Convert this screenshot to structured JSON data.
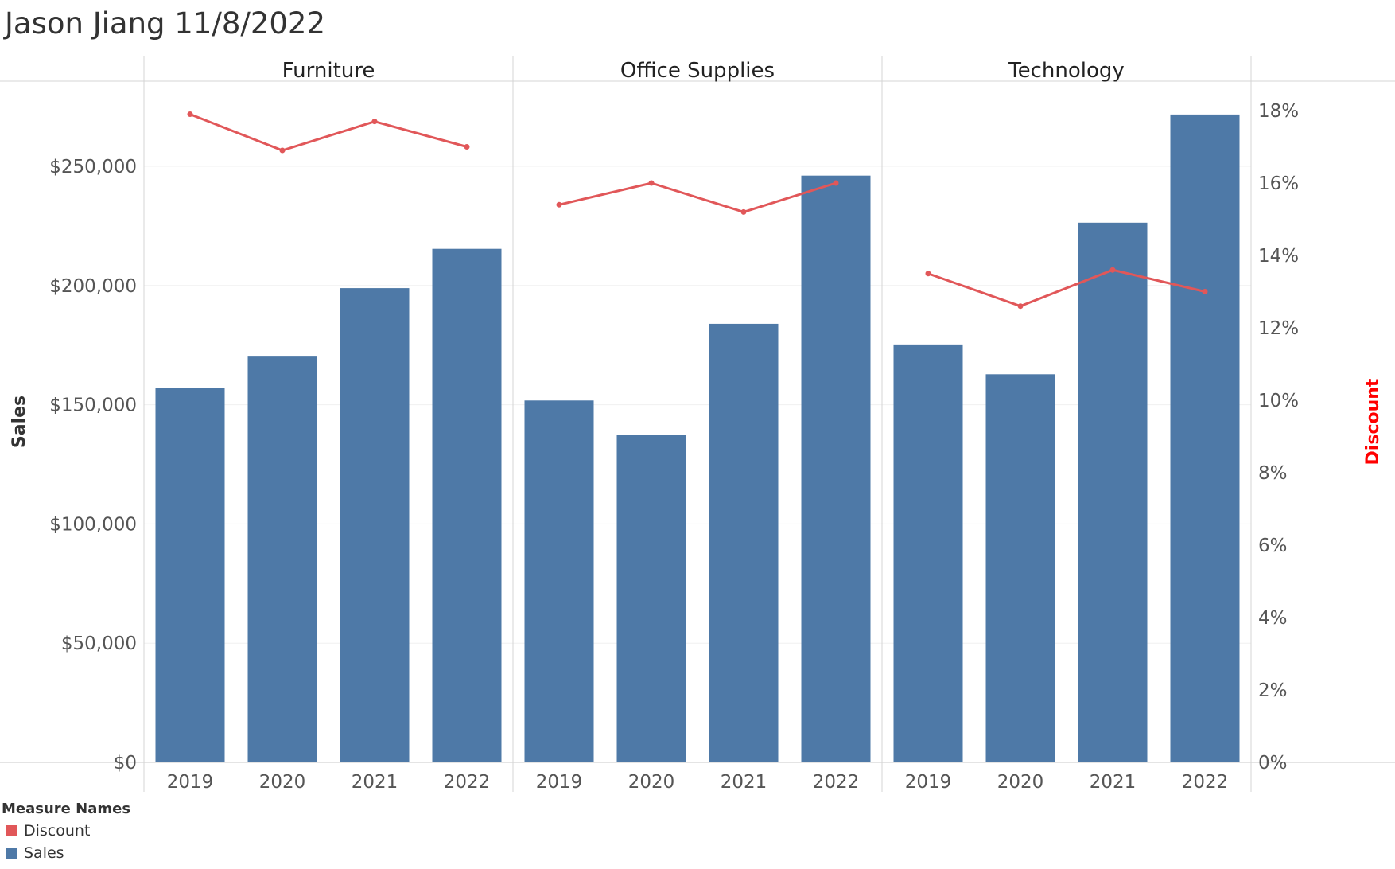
{
  "title": "Jason Jiang 11/8/2022",
  "chart_data": {
    "type": "bar",
    "panels": [
      "Furniture",
      "Office Supplies",
      "Technology"
    ],
    "categories": [
      "2019",
      "2020",
      "2021",
      "2022"
    ],
    "series": [
      {
        "name": "Sales",
        "type": "bar",
        "axis": "left",
        "color": "#4e79a7",
        "values": {
          "Furniture": [
            157193,
            170518,
            198901,
            215387
          ],
          "Office Supplies": [
            151776,
            137233,
            183940,
            246097
          ],
          "Technology": [
            175278,
            162781,
            226364,
            271731
          ]
        }
      },
      {
        "name": "Discount",
        "type": "line",
        "axis": "right",
        "color": "#e15759",
        "values": {
          "Furniture": [
            0.179,
            0.169,
            0.177,
            0.17
          ],
          "Office Supplies": [
            0.154,
            0.16,
            0.152,
            0.16
          ],
          "Technology": [
            0.135,
            0.126,
            0.136,
            0.13
          ]
        }
      }
    ],
    "y_left": {
      "label": "Sales",
      "ylim": [
        0,
        280000
      ],
      "ticks": [
        0,
        50000,
        100000,
        150000,
        200000,
        250000
      ],
      "tick_labels": [
        "$0",
        "$50,000",
        "$100,000",
        "$150,000",
        "$200,000",
        "$250,000"
      ]
    },
    "y_right": {
      "label": "Discount",
      "label_color": "#ff0000",
      "ylim": [
        0,
        0.18
      ],
      "ticks": [
        0,
        0.02,
        0.04,
        0.06,
        0.08,
        0.1,
        0.12,
        0.14,
        0.16,
        0.18
      ],
      "tick_labels": [
        "0%",
        "2%",
        "4%",
        "6%",
        "8%",
        "10%",
        "12%",
        "14%",
        "16%",
        "18%"
      ]
    },
    "grid": true,
    "legend": {
      "title": "Measure Names",
      "position": "bottom-left",
      "items": [
        {
          "name": "Discount",
          "color": "#e15759"
        },
        {
          "name": "Sales",
          "color": "#4e79a7"
        }
      ]
    }
  }
}
